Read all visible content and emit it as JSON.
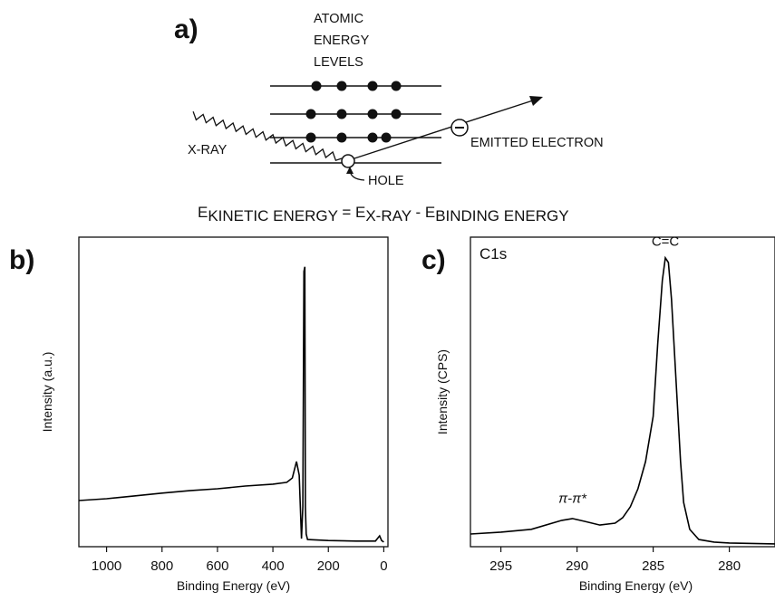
{
  "diagram": {
    "label": "a)",
    "heading": [
      "ATOMIC",
      "ENERGY",
      "LEVELS"
    ],
    "xray": "X-RAY",
    "hole": "HOLE",
    "electron": "EMITTED ELECTRON",
    "equation": [
      "E",
      "KINETIC ENERGY",
      " = E",
      "X-RAY",
      " - E",
      "BINDING ENERGY"
    ]
  },
  "chart_data": [
    {
      "type": "line",
      "label": "b)",
      "xlabel": "Binding Energy (eV)",
      "ylabel": "Intensity (a.u.)",
      "xlim": [
        1100,
        -15
      ],
      "xticks": [
        1000,
        800,
        600,
        400,
        200,
        0
      ],
      "ylim": [
        0,
        100
      ],
      "color": "#000000",
      "x": [
        1100,
        1000,
        900,
        800,
        700,
        600,
        500,
        400,
        350,
        330,
        315,
        305,
        297,
        292,
        288,
        285,
        283,
        280,
        275,
        200,
        100,
        30,
        15,
        8,
        0
      ],
      "values": [
        14.9,
        15.5,
        16.4,
        17.3,
        18.1,
        18.7,
        19.6,
        20.2,
        20.8,
        22.2,
        27.5,
        23.1,
        2.6,
        12.9,
        88.9,
        90.4,
        12.9,
        4.1,
        2.3,
        2.0,
        1.8,
        1.8,
        3.5,
        2.0,
        1.5
      ]
    },
    {
      "type": "line",
      "label": "c)",
      "title": "C1s",
      "xlabel": "Binding Energy (eV)",
      "ylabel": "Intensity (CPS)",
      "xlim": [
        297,
        277
      ],
      "xticks": [
        295,
        290,
        285,
        280
      ],
      "ylim": [
        0,
        100
      ],
      "color": "#000000",
      "annotations": [
        {
          "text": "C=C",
          "x": 284.2,
          "y": 96
        },
        {
          "text": "π-π*",
          "x": 290.3,
          "y": 13
        }
      ],
      "x": [
        297,
        295,
        293,
        291,
        290.3,
        289.5,
        288.5,
        287.5,
        287,
        286.5,
        286,
        285.5,
        285,
        284.7,
        284.4,
        284.2,
        284,
        283.8,
        283.5,
        283.2,
        283,
        282.6,
        282,
        281,
        280,
        277
      ],
      "values": [
        4.1,
        4.7,
        5.6,
        8.5,
        9.1,
        8.2,
        7.0,
        7.6,
        9.4,
        12.9,
        18.7,
        27.5,
        42.1,
        65.5,
        86,
        93.3,
        91.8,
        80,
        53.8,
        27.5,
        14.3,
        5.6,
        2.3,
        1.5,
        1.2,
        0.9
      ]
    }
  ]
}
